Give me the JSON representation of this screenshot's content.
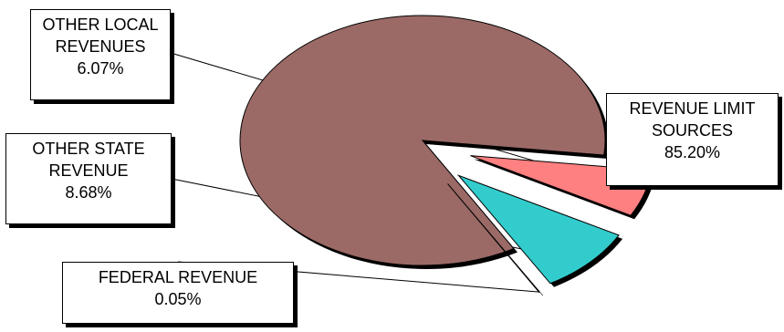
{
  "chart_data": {
    "type": "pie",
    "title": "",
    "slices": [
      {
        "label": "REVENUE LIMIT SOURCES",
        "value": 85.2,
        "value_text": "85.20%",
        "color": "#9b6a66",
        "exploded": false
      },
      {
        "label": "OTHER LOCAL REVENUES",
        "value": 6.07,
        "value_text": "6.07%",
        "color": "#ff8080",
        "exploded": true
      },
      {
        "label": "OTHER STATE REVENUE",
        "value": 8.68,
        "value_text": "8.68%",
        "color": "#33cccc",
        "exploded": true
      },
      {
        "label": "FEDERAL REVENUE",
        "value": 0.05,
        "value_text": "0.05%",
        "color": "#000080",
        "exploded": true
      }
    ],
    "labels": {
      "revenue_limit": {
        "line1": "REVENUE LIMIT",
        "line2": "SOURCES",
        "value": "85.20%"
      },
      "other_local": {
        "line1": "OTHER LOCAL",
        "line2": "REVENUES",
        "value": "6.07%"
      },
      "other_state": {
        "line1": "OTHER STATE",
        "line2": "REVENUE",
        "value": "8.68%"
      },
      "federal": {
        "line1": "FEDERAL REVENUE",
        "value": "0.05%"
      }
    }
  }
}
